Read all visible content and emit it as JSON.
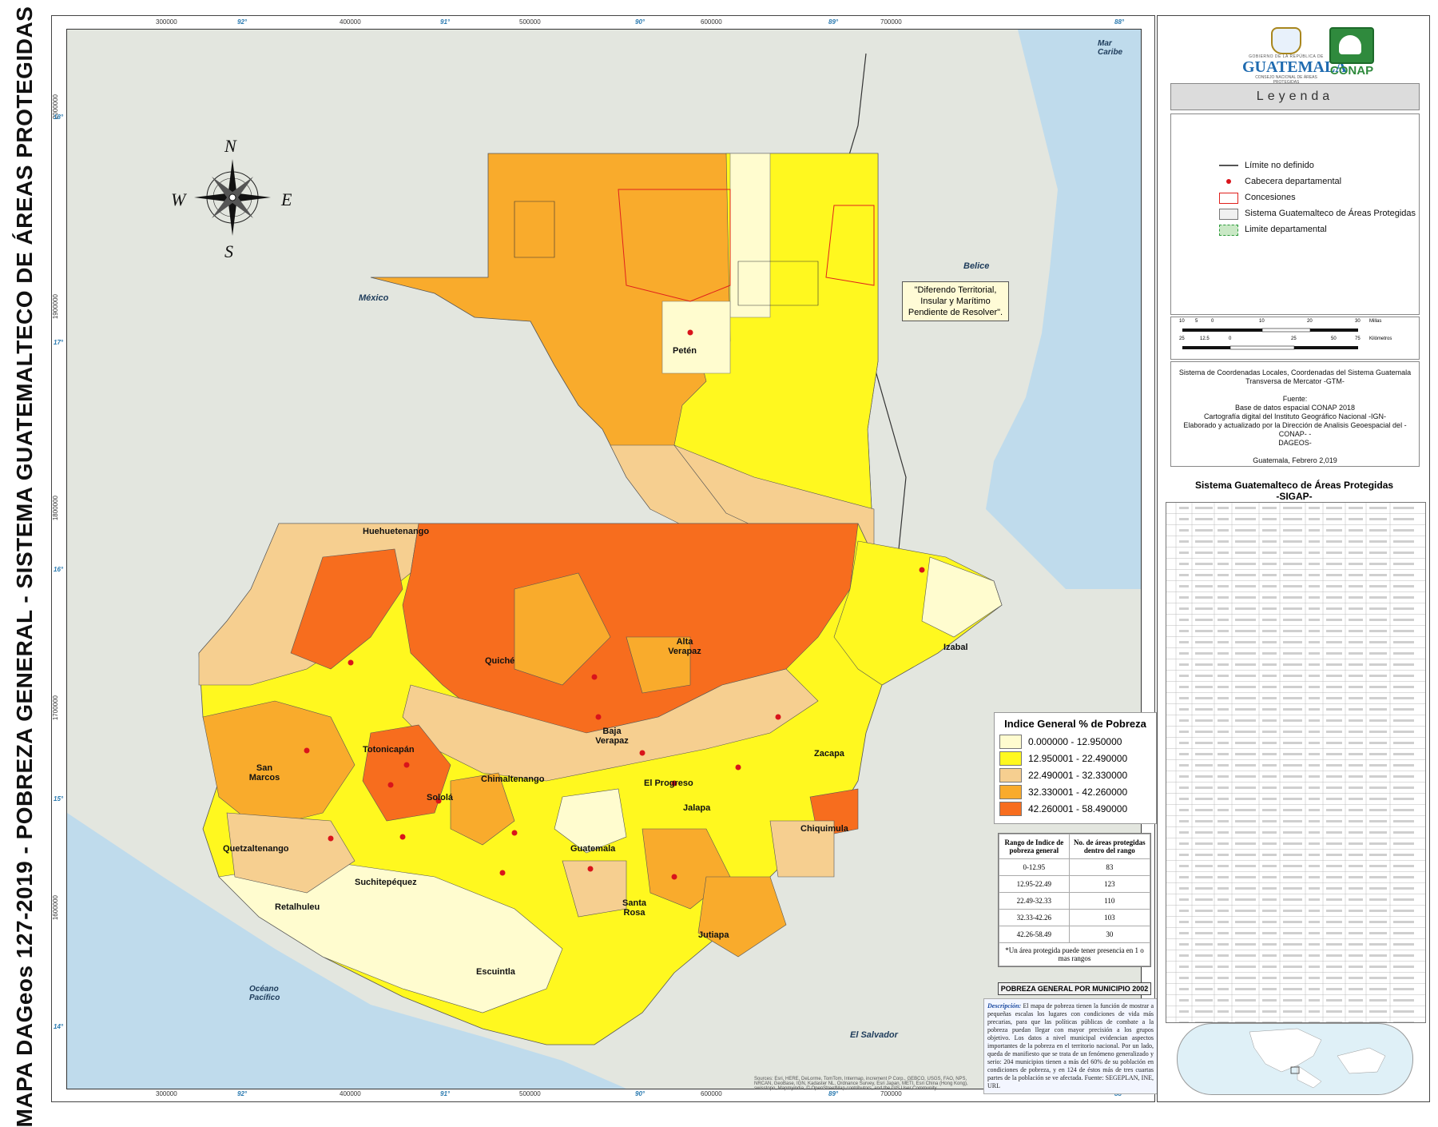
{
  "vertical_title": "MAPA DAGeos 127-2019 - POBREZA GENERAL - SISTEMA GUATEMALTECO DE ÁREAS PROTEGIDAS -",
  "grid_labels": {
    "top_easting": [
      "300000",
      "400000",
      "500000",
      "600000",
      "700000"
    ],
    "top_degrees": [
      "92°",
      "91°",
      "90°",
      "89°",
      "88°"
    ],
    "left_northing": [
      "2000000",
      "1900000",
      "1800000",
      "1700000",
      "1600000"
    ],
    "left_degrees": [
      "18°",
      "17°",
      "16°",
      "15°",
      "14°"
    ]
  },
  "map_labels": {
    "countries": [
      "México",
      "Belice",
      "El Salvador"
    ],
    "waters": [
      "Mar Caribe",
      "Océano Pacífico"
    ],
    "departments": [
      "Petén",
      "Huehuetenango",
      "Quiché",
      "Alta Verapaz",
      "Izabal",
      "Baja Verapaz",
      "Zacapa",
      "San Marcos",
      "Totonicapán",
      "Chimaltenango",
      "Sololá",
      "Quetzaltenango",
      "El Progreso",
      "Jalapa",
      "Chiquimula",
      "Guatemala",
      "Retalhuleu",
      "Suchitepéquez",
      "Santa Rosa",
      "Jutiapa",
      "Escuintla"
    ],
    "dispute_note": "\"Diferendo Territorial, Insular y Marítimo Pendiente de Resolver\"."
  },
  "poverty_legend": {
    "title": "Indice General % de Pobreza",
    "classes": [
      {
        "label": "0.000000 - 12.950000",
        "color": "#fffccf"
      },
      {
        "label": "12.950001 - 22.490000",
        "color": "#fff81f"
      },
      {
        "label": "22.490001 - 32.330000",
        "color": "#f6cf90"
      },
      {
        "label": "32.330001 - 42.260000",
        "color": "#f9ab2c"
      },
      {
        "label": "42.260001 - 58.490000",
        "color": "#f76d1e"
      }
    ]
  },
  "range_table": {
    "headers": [
      "Rango de Indice de pobreza general",
      "No. de áreas protegidas dentro del rango"
    ],
    "rows": [
      [
        "0-12.95",
        "83"
      ],
      [
        "12.95-22.49",
        "123"
      ],
      [
        "22.49-32.33",
        "110"
      ],
      [
        "32.33-42.26",
        "103"
      ],
      [
        "42.26-58.49",
        "30"
      ]
    ],
    "note": "*Un área protegida puede tener presencia en 1 o mas rangos"
  },
  "subtitle": "POBREZA GENERAL POR MUNICIPIO 2002",
  "description": {
    "lead": "Descripción:",
    "text": "El mapa de pobreza tienen la función de mostrar a pequeñas escalas los lugares con condiciones de vida más precarias, para que las políticas públicas de combate a la pobreza puedan llegar con mayor precisión a los grupos objetivo. Los datos a nivel municipal evidencian aspectos importantes de la pobreza en el territorio nacional. Por un lado, queda de manifiesto que se trata de un fenómeno generalizado y serio: 204 municipios tienen a más del 60% de su población en condiciones de pobreza, y en 124 de éstos más de tres cuartas partes de la población se ve afectada. Fuente: SEGEPLAN, INE, URL"
  },
  "attribution": "Sources: Esri, HERE, DeLorme, TomTom, Intermap, increment P Corp., GEBCO, USGS, FAO, NPS, NRCAN, GeoBase, IGN, Kadaster NL, Ordnance Survey, Esri Japan, METI, Esri China (Hong Kong), swisstopo, Mapmyindia, © OpenStreetMap contributors, and the GIS User Community",
  "sidebar": {
    "gt_logo": {
      "small": "GOBIERNO DE LA REPÚBLICA DE",
      "big": "GUATEMALA",
      "sub": "CONSEJO NACIONAL DE ÁREAS PROTEGIDAS"
    },
    "conap_logo": "CONAP",
    "legend_header": "Leyenda",
    "legend_items": [
      {
        "label": "Límite no definido",
        "icon": "line-icon"
      },
      {
        "label": "Cabecera departamental",
        "icon": "red-dot-icon"
      },
      {
        "label": "Concesiones",
        "icon": "red-outline-box-icon"
      },
      {
        "label": "Sistema Guatemalteco de Áreas Protegidas",
        "icon": "grey-outline-box-icon"
      },
      {
        "label": "Limite departamental",
        "icon": "green-dashed-box-icon"
      }
    ],
    "scale": {
      "miles_ticks": [
        "10",
        "5",
        "0",
        "10",
        "20",
        "30"
      ],
      "miles_unit": "Millas",
      "km_ticks": [
        "25",
        "12.5",
        "0",
        "25",
        "50",
        "75"
      ],
      "km_unit": "Kilómetros"
    },
    "coords": [
      "Sistema de Coordenadas Locales, Coordenadas del Sistema Guatemala",
      "Transversa de Mercator -GTM-",
      "",
      "Fuente:",
      "Base de datos espacial CONAP 2018",
      "Cartografía digital del Instituto Geográfico Nacional -IGN-",
      "Elaborado y actualizado por la Dirección de Analisis Geoespacial del -CONAP- -",
      "DAGEOS-",
      "",
      "Guatemala, Febrero 2,019"
    ],
    "sigap_title": "Sistema Guatemalteco de Áreas Protegidas",
    "sigap_sub": "-SIGAP-"
  },
  "compass": {
    "n": "N",
    "s": "S",
    "e": "E",
    "w": "W"
  }
}
